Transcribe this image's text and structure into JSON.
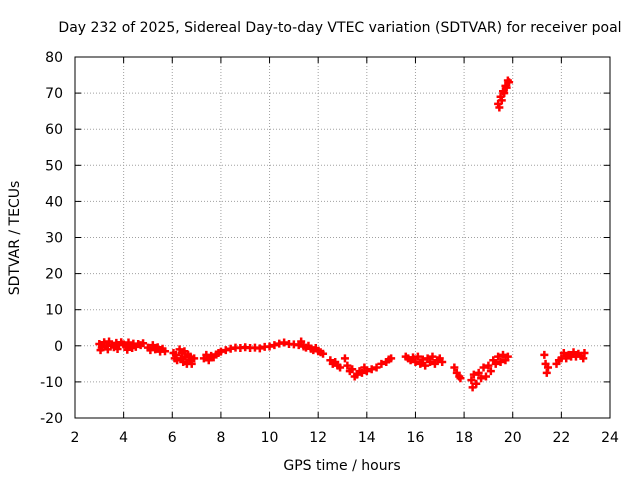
{
  "chart_data": {
    "type": "scatter",
    "title": "Day 232 of 2025, Sidereal Day-to-day VTEC variation (SDTVAR) for receiver poal",
    "xlabel": "GPS time / hours",
    "ylabel": "SDTVAR / TECUs",
    "xlim": [
      2,
      24
    ],
    "ylim": [
      -20,
      80
    ],
    "xticks": [
      2,
      4,
      6,
      8,
      10,
      12,
      14,
      16,
      18,
      20,
      22,
      24
    ],
    "yticks": [
      -20,
      -10,
      0,
      10,
      20,
      30,
      40,
      50,
      60,
      70,
      80
    ],
    "grid": true,
    "marker": "+",
    "color": "#ff0000",
    "series": [
      {
        "name": "SDTVAR",
        "points": [
          [
            3.0,
            0.5
          ],
          [
            3.1,
            -0.5
          ],
          [
            3.2,
            1.0
          ],
          [
            3.3,
            0.0
          ],
          [
            3.4,
            1.2
          ],
          [
            3.5,
            0.3
          ],
          [
            3.6,
            -0.4
          ],
          [
            3.7,
            0.8
          ],
          [
            3.8,
            0.2
          ],
          [
            3.9,
            1.0
          ],
          [
            4.0,
            0.4
          ],
          [
            4.1,
            -0.2
          ],
          [
            4.2,
            0.9
          ],
          [
            4.3,
            0.1
          ],
          [
            4.4,
            0.6
          ],
          [
            4.5,
            -0.3
          ],
          [
            4.6,
            0.5
          ],
          [
            4.7,
            0.2
          ],
          [
            4.8,
            0.7
          ],
          [
            3.05,
            -1.2
          ],
          [
            3.35,
            -1.0
          ],
          [
            3.75,
            -0.9
          ],
          [
            4.15,
            -1.1
          ],
          [
            4.35,
            -0.6
          ],
          [
            5.0,
            -0.5
          ],
          [
            5.1,
            -1.2
          ],
          [
            5.2,
            0.2
          ],
          [
            5.3,
            -1.0
          ],
          [
            5.4,
            -0.4
          ],
          [
            5.5,
            -1.6
          ],
          [
            5.6,
            -0.8
          ],
          [
            5.7,
            -1.5
          ],
          [
            6.05,
            -2.0
          ],
          [
            6.1,
            -3.5
          ],
          [
            6.15,
            -2.5
          ],
          [
            6.2,
            -4.0
          ],
          [
            6.3,
            -1.0
          ],
          [
            6.35,
            -3.5
          ],
          [
            6.4,
            -2.0
          ],
          [
            6.45,
            -4.5
          ],
          [
            6.5,
            -1.5
          ],
          [
            6.55,
            -3.0
          ],
          [
            6.6,
            -5.0
          ],
          [
            6.65,
            -2.5
          ],
          [
            6.7,
            -4.0
          ],
          [
            6.75,
            -3.0
          ],
          [
            6.8,
            -5.0
          ],
          [
            6.9,
            -3.5
          ],
          [
            7.3,
            -3.5
          ],
          [
            7.4,
            -2.5
          ],
          [
            7.5,
            -4.0
          ],
          [
            7.6,
            -2.8
          ],
          [
            7.7,
            -3.2
          ],
          [
            7.8,
            -2.4
          ],
          [
            7.9,
            -2.0
          ],
          [
            8.0,
            -1.6
          ],
          [
            8.2,
            -1.2
          ],
          [
            8.4,
            -0.8
          ],
          [
            8.6,
            -0.5
          ],
          [
            8.8,
            -0.6
          ],
          [
            9.0,
            -0.4
          ],
          [
            9.2,
            -0.6
          ],
          [
            9.4,
            -0.5
          ],
          [
            9.6,
            -0.7
          ],
          [
            9.8,
            -0.3
          ],
          [
            10.0,
            -0.2
          ],
          [
            10.2,
            0.2
          ],
          [
            10.4,
            0.6
          ],
          [
            10.6,
            0.9
          ],
          [
            10.8,
            0.5
          ],
          [
            11.0,
            0.4
          ],
          [
            11.2,
            0.2
          ],
          [
            11.3,
            1.2
          ],
          [
            11.4,
            -0.2
          ],
          [
            11.5,
            -0.5
          ],
          [
            11.6,
            0.0
          ],
          [
            11.7,
            -0.8
          ],
          [
            11.8,
            -1.2
          ],
          [
            11.9,
            -0.6
          ],
          [
            12.0,
            -1.5
          ],
          [
            12.1,
            -1.8
          ],
          [
            12.2,
            -2.2
          ],
          [
            12.5,
            -4.0
          ],
          [
            12.6,
            -5.0
          ],
          [
            12.7,
            -4.5
          ],
          [
            12.8,
            -5.5
          ],
          [
            12.9,
            -6.0
          ],
          [
            13.1,
            -3.5
          ],
          [
            13.2,
            -5.5
          ],
          [
            13.3,
            -7.0
          ],
          [
            13.4,
            -6.5
          ],
          [
            13.5,
            -8.5
          ],
          [
            13.6,
            -8.0
          ],
          [
            13.7,
            -7.0
          ],
          [
            13.8,
            -7.5
          ],
          [
            13.9,
            -6.0
          ],
          [
            14.0,
            -7.0
          ],
          [
            14.2,
            -6.5
          ],
          [
            14.4,
            -6.0
          ],
          [
            14.6,
            -5.0
          ],
          [
            14.8,
            -4.5
          ],
          [
            14.9,
            -3.8
          ],
          [
            15.0,
            -3.5
          ],
          [
            15.6,
            -3.0
          ],
          [
            15.7,
            -3.5
          ],
          [
            15.8,
            -4.0
          ],
          [
            15.9,
            -3.2
          ],
          [
            16.0,
            -4.5
          ],
          [
            16.1,
            -3.0
          ],
          [
            16.2,
            -5.0
          ],
          [
            16.3,
            -3.8
          ],
          [
            16.4,
            -5.5
          ],
          [
            16.5,
            -3.5
          ],
          [
            16.6,
            -4.5
          ],
          [
            16.7,
            -3.0
          ],
          [
            16.8,
            -5.0
          ],
          [
            16.9,
            -4.0
          ],
          [
            17.0,
            -3.5
          ],
          [
            17.1,
            -4.5
          ],
          [
            17.6,
            -6.0
          ],
          [
            17.7,
            -7.5
          ],
          [
            17.8,
            -8.5
          ],
          [
            17.85,
            -9.0
          ],
          [
            18.3,
            -9.5
          ],
          [
            18.35,
            -11.5
          ],
          [
            18.4,
            -8.0
          ],
          [
            18.5,
            -10.5
          ],
          [
            18.6,
            -7.5
          ],
          [
            18.7,
            -9.0
          ],
          [
            18.8,
            -6.0
          ],
          [
            18.9,
            -8.5
          ],
          [
            19.0,
            -5.5
          ],
          [
            19.1,
            -7.0
          ],
          [
            19.2,
            -4.0
          ],
          [
            19.3,
            -5.0
          ],
          [
            19.4,
            -3.0
          ],
          [
            19.5,
            -4.5
          ],
          [
            19.6,
            -2.5
          ],
          [
            19.7,
            -4.0
          ],
          [
            19.8,
            -3.0
          ],
          [
            19.4,
            67.0
          ],
          [
            19.45,
            66.0
          ],
          [
            19.5,
            69.0
          ],
          [
            19.55,
            68.0
          ],
          [
            19.6,
            70.5
          ],
          [
            19.65,
            70.0
          ],
          [
            19.7,
            72.0
          ],
          [
            19.75,
            71.5
          ],
          [
            19.8,
            73.5
          ],
          [
            19.85,
            73.0
          ],
          [
            21.3,
            -2.5
          ],
          [
            21.35,
            -5.0
          ],
          [
            21.4,
            -7.5
          ],
          [
            21.45,
            -6.0
          ],
          [
            21.8,
            -5.0
          ],
          [
            21.9,
            -4.0
          ],
          [
            22.0,
            -3.5
          ],
          [
            22.1,
            -2.0
          ],
          [
            22.2,
            -3.5
          ],
          [
            22.3,
            -2.5
          ],
          [
            22.4,
            -3.0
          ],
          [
            22.5,
            -1.8
          ],
          [
            22.6,
            -3.0
          ],
          [
            22.7,
            -2.2
          ],
          [
            22.8,
            -2.8
          ],
          [
            22.9,
            -3.5
          ],
          [
            22.95,
            -2.0
          ]
        ]
      }
    ]
  }
}
